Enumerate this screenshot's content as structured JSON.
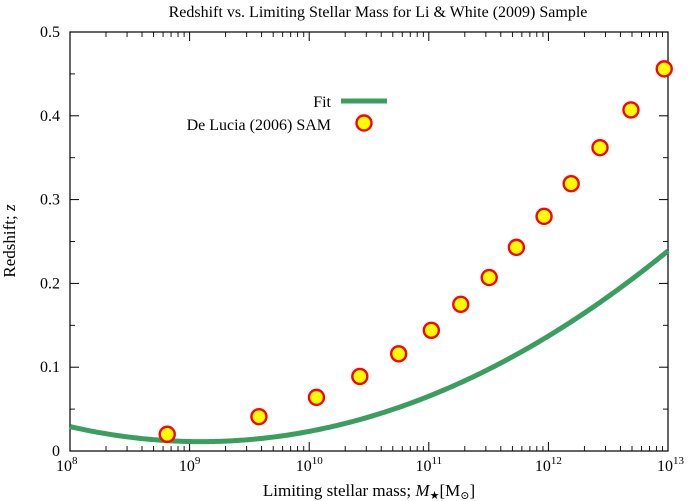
{
  "chart_data": {
    "type": "line",
    "title": "Redshift vs. Limiting Stellar Mass for Li & White (2009) Sample",
    "xlabel": "Limiting stellar mass; ",
    "xlabel_symbol": "M",
    "xlabel_sub": "★",
    "xlabel_unit_open": "[M",
    "xlabel_unit_sub": "⊙",
    "xlabel_unit_close": "]",
    "ylabel": "Redshift; ",
    "ylabel_symbol": "z",
    "x_scale": "log",
    "xlim": [
      100000000,
      10000000000000
    ],
    "ylim": [
      0,
      0.5
    ],
    "x_ticks": [
      {
        "value": 100000000,
        "base": "10",
        "exp": "8"
      },
      {
        "value": 1000000000,
        "base": "10",
        "exp": "9"
      },
      {
        "value": 10000000000,
        "base": "10",
        "exp": "10"
      },
      {
        "value": 100000000000,
        "base": "10",
        "exp": "11"
      },
      {
        "value": 1000000000000,
        "base": "10",
        "exp": "12"
      },
      {
        "value": 10000000000000,
        "base": "10",
        "exp": "13"
      }
    ],
    "y_ticks": [
      {
        "value": 0,
        "label": "0"
      },
      {
        "value": 0.1,
        "label": "0.1"
      },
      {
        "value": 0.2,
        "label": "0.2"
      },
      {
        "value": 0.3,
        "label": "0.3"
      },
      {
        "value": 0.4,
        "label": "0.4"
      },
      {
        "value": 0.5,
        "label": "0.5"
      }
    ],
    "grid": false,
    "legend_position": "upper-left",
    "series": [
      {
        "name": "Fit",
        "kind": "line",
        "color": "#3a9e5f",
        "fit_coefficients_log10": [
          1.2466,
          -0.27166,
          0.014934
        ]
      },
      {
        "name": "De Lucia (2006) SAM",
        "kind": "scatter",
        "marker_fill": "#ffff00",
        "marker_edge": "#ff0000",
        "points": [
          {
            "x": 650000000,
            "y": 0.02
          },
          {
            "x": 3800000000,
            "y": 0.041
          },
          {
            "x": 11500000000,
            "y": 0.064
          },
          {
            "x": 26500000000,
            "y": 0.089
          },
          {
            "x": 56000000000,
            "y": 0.116
          },
          {
            "x": 105000000000,
            "y": 0.144
          },
          {
            "x": 185000000000,
            "y": 0.175
          },
          {
            "x": 320000000000,
            "y": 0.207
          },
          {
            "x": 540000000000,
            "y": 0.243
          },
          {
            "x": 920000000000,
            "y": 0.28
          },
          {
            "x": 1550000000000,
            "y": 0.319
          },
          {
            "x": 2700000000000,
            "y": 0.362
          },
          {
            "x": 4900000000000,
            "y": 0.407
          },
          {
            "x": 9300000000000,
            "y": 0.456
          }
        ]
      }
    ]
  }
}
